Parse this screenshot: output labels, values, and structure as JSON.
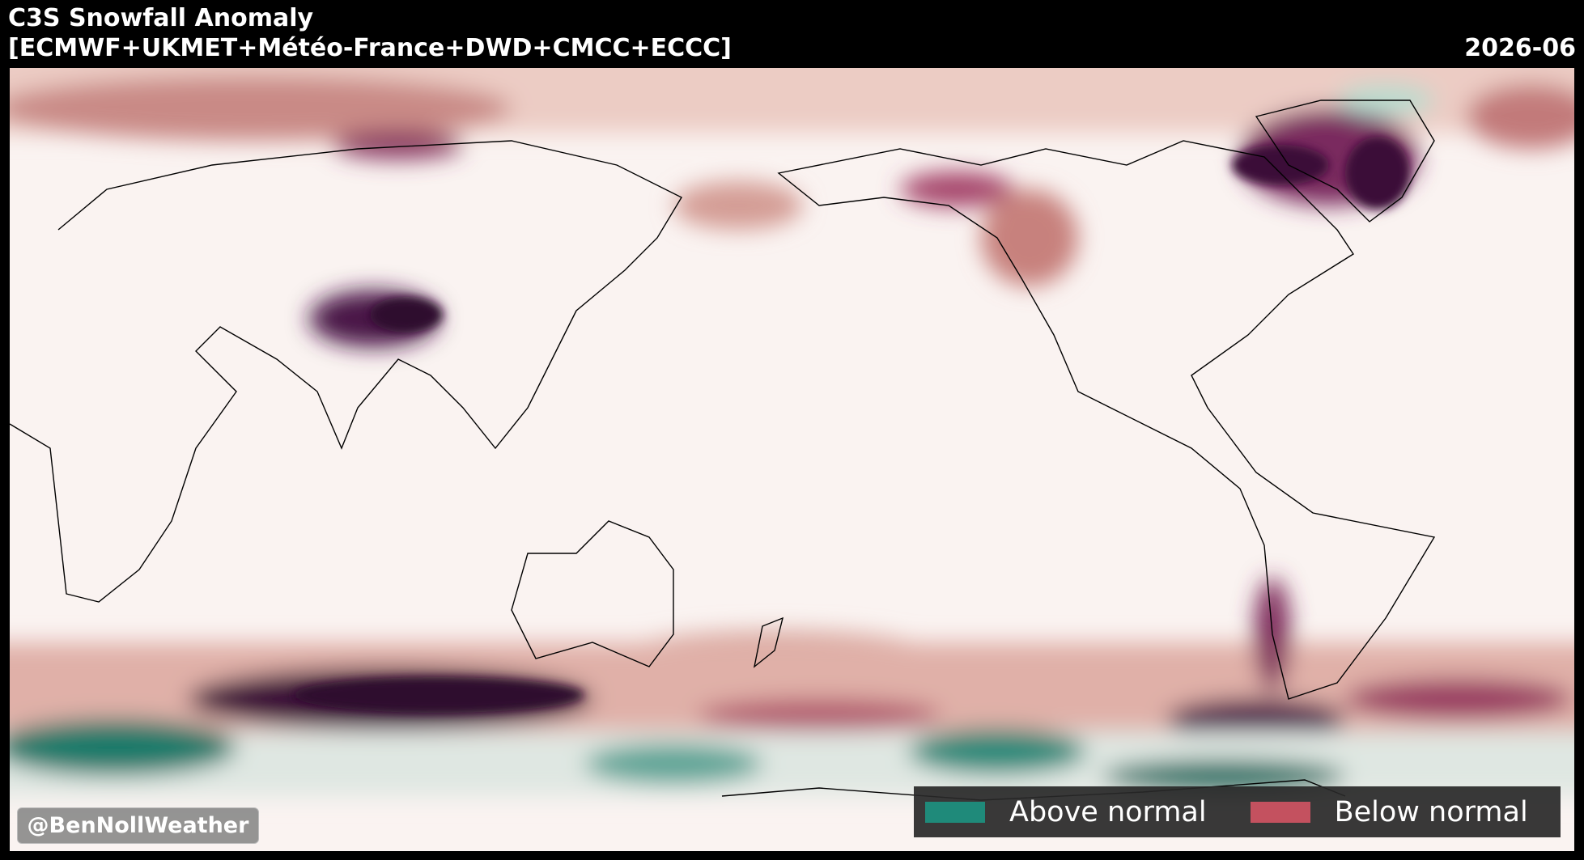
{
  "header": {
    "title": "C3S Snowfall Anomaly",
    "subtitle": "[ECMWF+UKMET+Météo-France+DWD+CMCC+ECCC]",
    "date": "2026-06"
  },
  "legend": [
    {
      "label": "Above normal",
      "color": "#1f8a7a"
    },
    {
      "label": "Below normal",
      "color": "#c4515f"
    }
  ],
  "watermark": "@BenNollWeather"
}
